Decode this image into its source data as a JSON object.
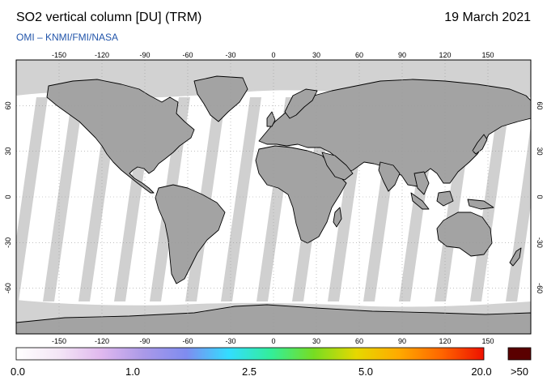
{
  "header": {
    "title": "SO2 vertical column [DU] (TRM)",
    "date": "19 March 2021",
    "credit": "OMI  –  KNMI/FMI/NASA"
  },
  "map": {
    "projection": "equirectangular",
    "lon_range": [
      -180,
      180
    ],
    "lat_range": [
      -90,
      90
    ],
    "lon_ticks": [
      "-150",
      "-120",
      "-90",
      "-60",
      "-30",
      "0",
      "30",
      "60",
      "90",
      "120",
      "150"
    ],
    "lat_ticks": [
      "60",
      "30",
      "0",
      "-30",
      "-60"
    ],
    "colors": {
      "land": "#a0a0a0",
      "no_data_band": "#d2d2d2",
      "background_values": "#ffffff",
      "coast": "#000000"
    }
  },
  "colorbar": {
    "labels": [
      "0.0",
      "1.0",
      "2.5",
      "5.0",
      "20.0",
      ">50"
    ],
    "overflow_color": "#5a0000",
    "gradient": [
      "#ffffff",
      "#f4e6f6",
      "#e0b8ee",
      "#aa99e8",
      "#7f8cf0",
      "#33ddff",
      "#33ee99",
      "#77dd22",
      "#e6d800",
      "#ffaa00",
      "#ff6600",
      "#ee1100"
    ]
  }
}
